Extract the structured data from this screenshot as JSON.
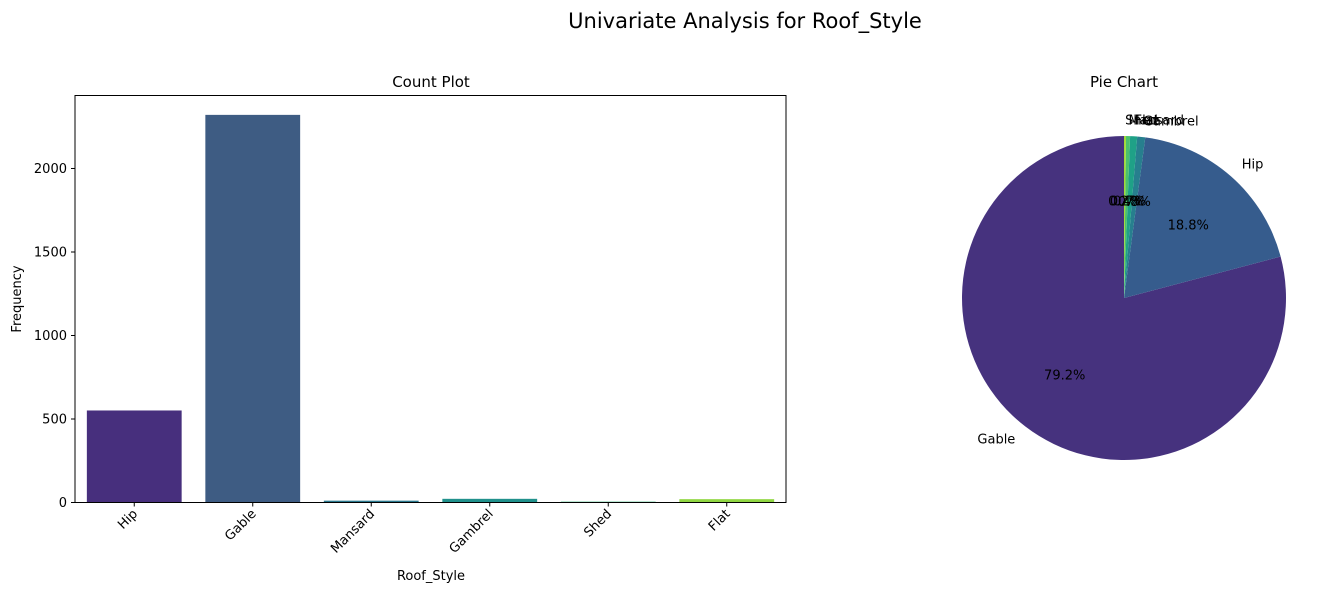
{
  "figure": {
    "title": "Univariate Analysis for Roof_Style"
  },
  "chart_data": [
    {
      "type": "bar",
      "title": "Count Plot",
      "xlabel": "Roof_Style",
      "ylabel": "Frequency",
      "categories": [
        "Hip",
        "Gable",
        "Mansard",
        "Gambrel",
        "Shed",
        "Flat"
      ],
      "values": [
        551,
        2321,
        11,
        22,
        5,
        20
      ],
      "colors": [
        "#472f7d",
        "#3e5c83",
        "#2a788e",
        "#21918c",
        "#35b779",
        "#90d743"
      ],
      "ylim": [
        0,
        2437
      ],
      "yticks": [
        0,
        500,
        1000,
        1500,
        2000
      ],
      "grid": false
    },
    {
      "type": "pie",
      "title": "Pie Chart",
      "slices": [
        {
          "label": "Gable",
          "value": 79.2,
          "pct_label": "79.2%",
          "color": "#46327e"
        },
        {
          "label": "Hip",
          "value": 18.8,
          "pct_label": "18.8%",
          "color": "#365c8d"
        },
        {
          "label": "Gambrel",
          "value": 0.8,
          "pct_label": "0.8%",
          "color": "#277f8e"
        },
        {
          "label": "Flat",
          "value": 0.7,
          "pct_label": "0.7%",
          "color": "#1fa187"
        },
        {
          "label": "Mansard",
          "value": 0.4,
          "pct_label": "0.4%",
          "color": "#4ac16d"
        },
        {
          "label": "Shed",
          "value": 0.2,
          "pct_label": "0.2%",
          "color": "#a0da39"
        }
      ],
      "start_angle": 90,
      "direction": "counterclockwise"
    }
  ]
}
